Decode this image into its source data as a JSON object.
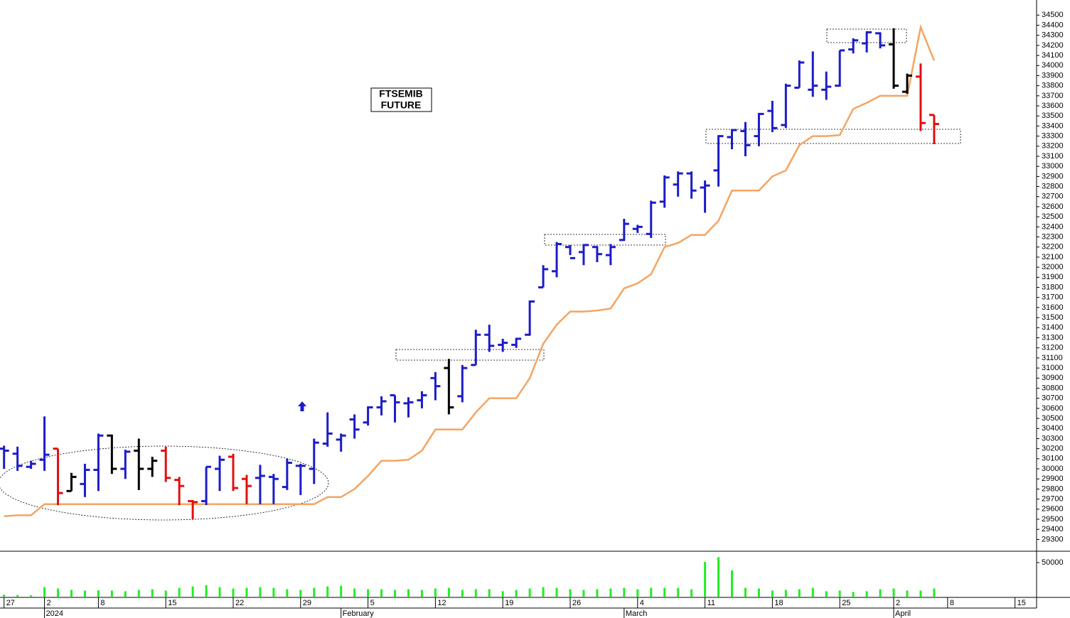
{
  "chart_data": [
    {
      "type": "ohlc",
      "title_lines": [
        "FTSEMIB",
        "FUTURE"
      ],
      "x": [
        0,
        1,
        2,
        3,
        4,
        5,
        6,
        7,
        8,
        9,
        10,
        11,
        12,
        13,
        14,
        15,
        16,
        17,
        18,
        19,
        20,
        21,
        22,
        23,
        24,
        25,
        26,
        27,
        28,
        29,
        30,
        31,
        32,
        33,
        34,
        35,
        36,
        37,
        38,
        39,
        40,
        41,
        42,
        43,
        44,
        45,
        46,
        47,
        48,
        49,
        50,
        51,
        52,
        53,
        54,
        55,
        56,
        57,
        58,
        59,
        60,
        61,
        62,
        63,
        64,
        65,
        66,
        67,
        68,
        69
      ],
      "open": [
        30200,
        30150,
        30020,
        30090,
        30200,
        29780,
        29850,
        29990,
        30330,
        30000,
        30180,
        30000,
        30180,
        29890,
        29680,
        29680,
        30000,
        30120,
        29900,
        29910,
        29920,
        29820,
        30030,
        30000,
        30250,
        30290,
        30490,
        30460,
        30610,
        30730,
        30650,
        30680,
        30900,
        31000,
        30720,
        31030,
        31330,
        31230,
        31230,
        31330,
        31800,
        31960,
        32200,
        32150,
        32200,
        32120,
        32270,
        32380,
        32330,
        32650,
        32820,
        32930,
        32790,
        32960,
        33290,
        33350,
        33300,
        33550,
        33410,
        33780,
        33760,
        33760,
        33800,
        34160,
        34220,
        34320,
        34210,
        33740,
        33890,
        33510
      ],
      "high": [
        30230,
        30220,
        30080,
        30520,
        30200,
        29960,
        30050,
        30350,
        30340,
        30190,
        30300,
        30120,
        30220,
        29920,
        29690,
        30020,
        30130,
        30150,
        29940,
        30040,
        29950,
        30100,
        30050,
        30300,
        30560,
        30350,
        30540,
        30620,
        30720,
        30730,
        30710,
        30770,
        30960,
        31090,
        31030,
        31380,
        31430,
        31290,
        31300,
        31670,
        32020,
        32250,
        32220,
        32230,
        32210,
        32230,
        32480,
        32420,
        32660,
        32910,
        32950,
        32950,
        32860,
        33310,
        33370,
        33440,
        33530,
        33650,
        33820,
        34050,
        34140,
        33940,
        34150,
        34270,
        34340,
        34330,
        34370,
        33920,
        34020,
        33510
      ],
      "low": [
        30000,
        29980,
        30000,
        29980,
        29640,
        29780,
        29720,
        29780,
        29950,
        29900,
        29790,
        29920,
        29870,
        29640,
        29500,
        29640,
        29780,
        29780,
        29650,
        29650,
        29650,
        29790,
        29740,
        29850,
        30220,
        30170,
        30300,
        30430,
        30530,
        30460,
        30510,
        30600,
        30680,
        30540,
        30660,
        31030,
        31160,
        31160,
        31200,
        31320,
        31800,
        31900,
        32120,
        32020,
        32050,
        32020,
        32260,
        32340,
        32290,
        32590,
        32700,
        32680,
        32540,
        32800,
        33170,
        33100,
        33200,
        33340,
        33380,
        33780,
        33690,
        33660,
        33790,
        34120,
        34130,
        34170,
        33770,
        33720,
        33350,
        33220
      ],
      "close": [
        30180,
        30030,
        30050,
        30140,
        29760,
        29920,
        29990,
        30330,
        30000,
        30170,
        30000,
        30080,
        29910,
        29830,
        29670,
        30020,
        30090,
        29810,
        29830,
        29930,
        29900,
        30060,
        30030,
        30260,
        30350,
        30330,
        30390,
        30610,
        30670,
        30660,
        30660,
        30730,
        30820,
        30610,
        31000,
        31330,
        31220,
        31250,
        31290,
        31660,
        31980,
        32230,
        32090,
        32220,
        32130,
        32200,
        32430,
        32400,
        32640,
        32890,
        32930,
        32760,
        32810,
        33300,
        33360,
        33210,
        33520,
        33380,
        33800,
        34030,
        33800,
        33790,
        34150,
        34250,
        34330,
        34200,
        33800,
        33900,
        33430,
        33420
      ],
      "colors": [
        "#1c1cc8",
        "#1c1cc8",
        "#1c1cc8",
        "#1c1cc8",
        "#e01010",
        "#000000",
        "#1c1cc8",
        "#1c1cc8",
        "#000000",
        "#1c1cc8",
        "#000000",
        "#000000",
        "#e01010",
        "#e01010",
        "#e01010",
        "#1c1cc8",
        "#1c1cc8",
        "#e01010",
        "#e01010",
        "#1c1cc8",
        "#1c1cc8",
        "#1c1cc8",
        "#1c1cc8",
        "#1c1cc8",
        "#1c1cc8",
        "#1c1cc8",
        "#1c1cc8",
        "#1c1cc8",
        "#1c1cc8",
        "#1c1cc8",
        "#1c1cc8",
        "#1c1cc8",
        "#1c1cc8",
        "#000000",
        "#1c1cc8",
        "#1c1cc8",
        "#1c1cc8",
        "#1c1cc8",
        "#1c1cc8",
        "#1c1cc8",
        "#1c1cc8",
        "#1c1cc8",
        "#1c1cc8",
        "#1c1cc8",
        "#1c1cc8",
        "#1c1cc8",
        "#1c1cc8",
        "#1c1cc8",
        "#1c1cc8",
        "#1c1cc8",
        "#1c1cc8",
        "#1c1cc8",
        "#1c1cc8",
        "#1c1cc8",
        "#1c1cc8",
        "#1c1cc8",
        "#1c1cc8",
        "#1c1cc8",
        "#1c1cc8",
        "#1c1cc8",
        "#1c1cc8",
        "#1c1cc8",
        "#1c1cc8",
        "#1c1cc8",
        "#1c1cc8",
        "#1c1cc8",
        "#000000",
        "#000000",
        "#e01010",
        "#e01010"
      ],
      "line": {
        "color": "#f5a462",
        "values": [
          29530,
          29540,
          29540,
          29650,
          29650,
          29650,
          29650,
          29650,
          29650,
          29650,
          29650,
          29650,
          29650,
          29650,
          29650,
          29650,
          29650,
          29650,
          29650,
          29650,
          29650,
          29650,
          29650,
          29650,
          29720,
          29720,
          29800,
          29930,
          30080,
          30080,
          30090,
          30180,
          30390,
          30390,
          30390,
          30560,
          30700,
          30700,
          30700,
          30900,
          31240,
          31430,
          31560,
          31560,
          31570,
          31590,
          31790,
          31840,
          31930,
          32200,
          32240,
          32320,
          32320,
          32460,
          32760,
          32760,
          32760,
          32900,
          32960,
          33210,
          33300,
          33300,
          33310,
          33570,
          33630,
          33700,
          33700,
          33700,
          34380,
          34050
        ]
      },
      "xlim": [
        -0.3,
        76.6
      ],
      "xticks": [
        {
          "value": 0,
          "label": "27"
        },
        {
          "value": 3,
          "label": "2"
        },
        {
          "value": 7,
          "label": "8"
        },
        {
          "value": 12,
          "label": "15"
        },
        {
          "value": 17,
          "label": "22"
        },
        {
          "value": 22,
          "label": "29"
        },
        {
          "value": 27,
          "label": "5"
        },
        {
          "value": 32,
          "label": "12"
        },
        {
          "value": 37,
          "label": "19"
        },
        {
          "value": 42,
          "label": "26"
        },
        {
          "value": 47,
          "label": "4"
        },
        {
          "value": 52,
          "label": "11"
        },
        {
          "value": 57,
          "label": "18"
        },
        {
          "value": 62,
          "label": "25"
        },
        {
          "value": 66,
          "label": "2"
        },
        {
          "value": 70,
          "label": "8"
        },
        {
          "value": 75,
          "label": "15"
        }
      ],
      "x_period_ticks": [
        {
          "value": 3,
          "label": "2024"
        },
        {
          "value": 25,
          "label": "February"
        },
        {
          "value": 46,
          "label": "March"
        },
        {
          "value": 66,
          "label": "April"
        }
      ],
      "ylim": [
        29190,
        34650
      ],
      "yticks": [
        29300,
        29400,
        29500,
        29600,
        29700,
        29800,
        29900,
        30000,
        30100,
        30200,
        30300,
        30400,
        30500,
        30600,
        30700,
        30800,
        30900,
        31000,
        31100,
        31200,
        31300,
        31400,
        31500,
        31600,
        31700,
        31800,
        31900,
        32000,
        32100,
        32200,
        32300,
        32400,
        32500,
        32600,
        32700,
        32800,
        32900,
        33000,
        33100,
        33200,
        33300,
        33400,
        33500,
        33600,
        33700,
        33800,
        33900,
        34000,
        34100,
        34200,
        34300,
        34400,
        34500
      ]
    },
    {
      "type": "bar",
      "x": [
        0,
        1,
        2,
        3,
        4,
        5,
        6,
        7,
        8,
        9,
        10,
        11,
        12,
        13,
        14,
        15,
        16,
        17,
        18,
        19,
        20,
        21,
        22,
        23,
        24,
        25,
        26,
        27,
        28,
        29,
        30,
        31,
        32,
        33,
        34,
        35,
        36,
        37,
        38,
        39,
        40,
        41,
        42,
        43,
        44,
        45,
        46,
        47,
        48,
        49,
        50,
        51,
        52,
        53,
        54,
        55,
        56,
        57,
        58,
        59,
        60,
        61,
        62,
        63,
        64,
        65,
        66,
        67,
        68,
        69
      ],
      "values": [
        3000,
        2500,
        2000,
        14000,
        12000,
        10000,
        9000,
        9500,
        9000,
        8000,
        10000,
        11000,
        9000,
        13000,
        15000,
        17000,
        14000,
        12000,
        13000,
        14000,
        13000,
        11000,
        10000,
        13000,
        15000,
        16000,
        12000,
        11000,
        11000,
        10000,
        11000,
        10000,
        12000,
        13000,
        10000,
        11000,
        11000,
        8000,
        10000,
        12000,
        14000,
        13000,
        11000,
        10000,
        11000,
        12000,
        13000,
        11000,
        13000,
        13000,
        13000,
        11000,
        51000,
        58000,
        38500,
        13000,
        12000,
        9000,
        10000,
        11000,
        13000,
        8000,
        9000,
        7000,
        8000,
        11000,
        12000,
        9000,
        9000,
        12000
      ],
      "color": "#22ee22",
      "xlim": [
        -0.3,
        76.6
      ],
      "ylim": [
        0,
        66700
      ],
      "yticks": [
        50000
      ]
    }
  ]
}
